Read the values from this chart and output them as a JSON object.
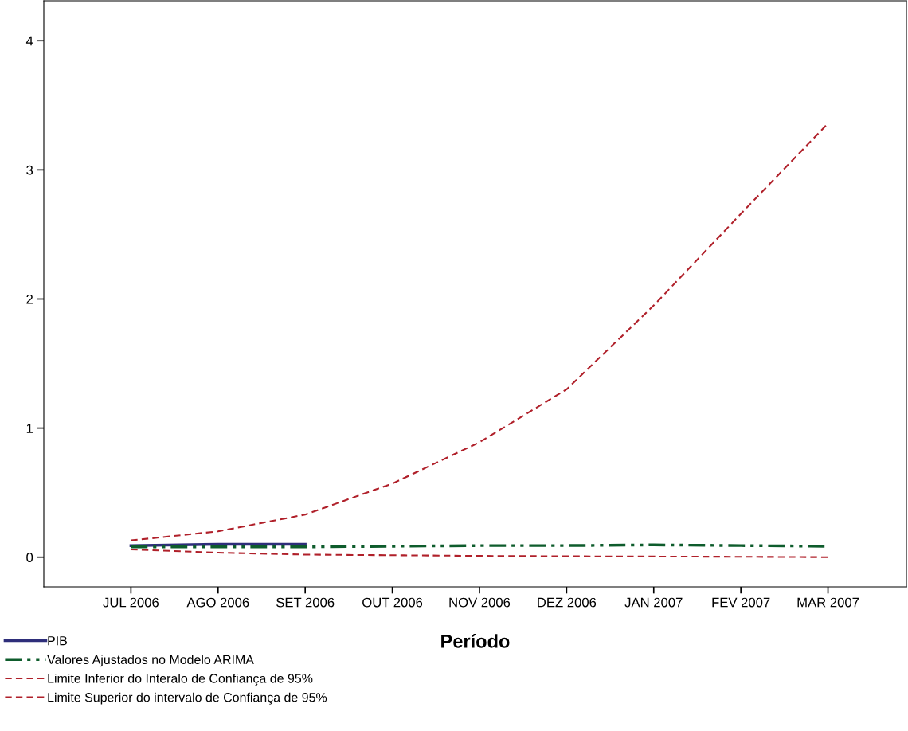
{
  "chart_data": {
    "type": "line",
    "xlabel": "Período",
    "categories": [
      "JUL 2006",
      "AGO 2006",
      "SET 2006",
      "OUT 2006",
      "NOV 2006",
      "DEZ 2006",
      "JAN 2007",
      "FEV 2007",
      "MAR 2007"
    ],
    "series": [
      {
        "name": "PIB",
        "color": "#2e2e7a",
        "line_style": "solid",
        "values": [
          0.09,
          0.1,
          0.1,
          null,
          null,
          null,
          null,
          null,
          null
        ]
      },
      {
        "name": "Valores Ajustados no Modelo ARIMA",
        "color": "#0e5c2c",
        "line_style": "dashdotdot",
        "values": [
          0.08,
          0.08,
          0.08,
          0.085,
          0.09,
          0.09,
          0.095,
          0.09,
          0.085
        ]
      },
      {
        "name": "Limite Inferior do Interalo de Confiança de 95%",
        "color": "#b0202a",
        "line_style": "dashed",
        "values": [
          0.06,
          0.035,
          0.02,
          0.015,
          0.01,
          0.007,
          0.005,
          0.003,
          0.0
        ]
      },
      {
        "name": "Limite Superior do intervalo de Confiança de 95%",
        "color": "#b0202a",
        "line_style": "dashed",
        "values": [
          0.13,
          0.2,
          0.33,
          0.57,
          0.89,
          1.3,
          1.95,
          2.66,
          3.36
        ]
      }
    ],
    "ylim": [
      -0.23,
      4.31
    ],
    "yticks": [
      0,
      1,
      2,
      3,
      4
    ],
    "grid": false,
    "legend": "bottom left",
    "marker": "none"
  }
}
